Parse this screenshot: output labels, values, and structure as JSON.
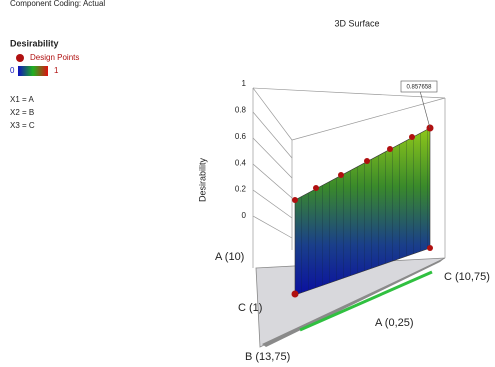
{
  "header": {
    "coding": "Component Coding: Actual",
    "title": "3D Surface"
  },
  "legend": {
    "title": "Desirability",
    "points": "Design Points",
    "scale_min": 0,
    "scale_max": 1,
    "factors": [
      "X1 = A",
      "X2 = B",
      "X3 = C"
    ]
  },
  "plot": {
    "z_label": "Desirability",
    "z_ticks": [
      1,
      0.8,
      0.6,
      0.4,
      0.2,
      0
    ],
    "annotation": 0.857658,
    "labels": [
      "A (10)",
      "C (1)",
      "B (13,75)",
      "A (0,25)",
      "C (10,75)"
    ]
  }
}
